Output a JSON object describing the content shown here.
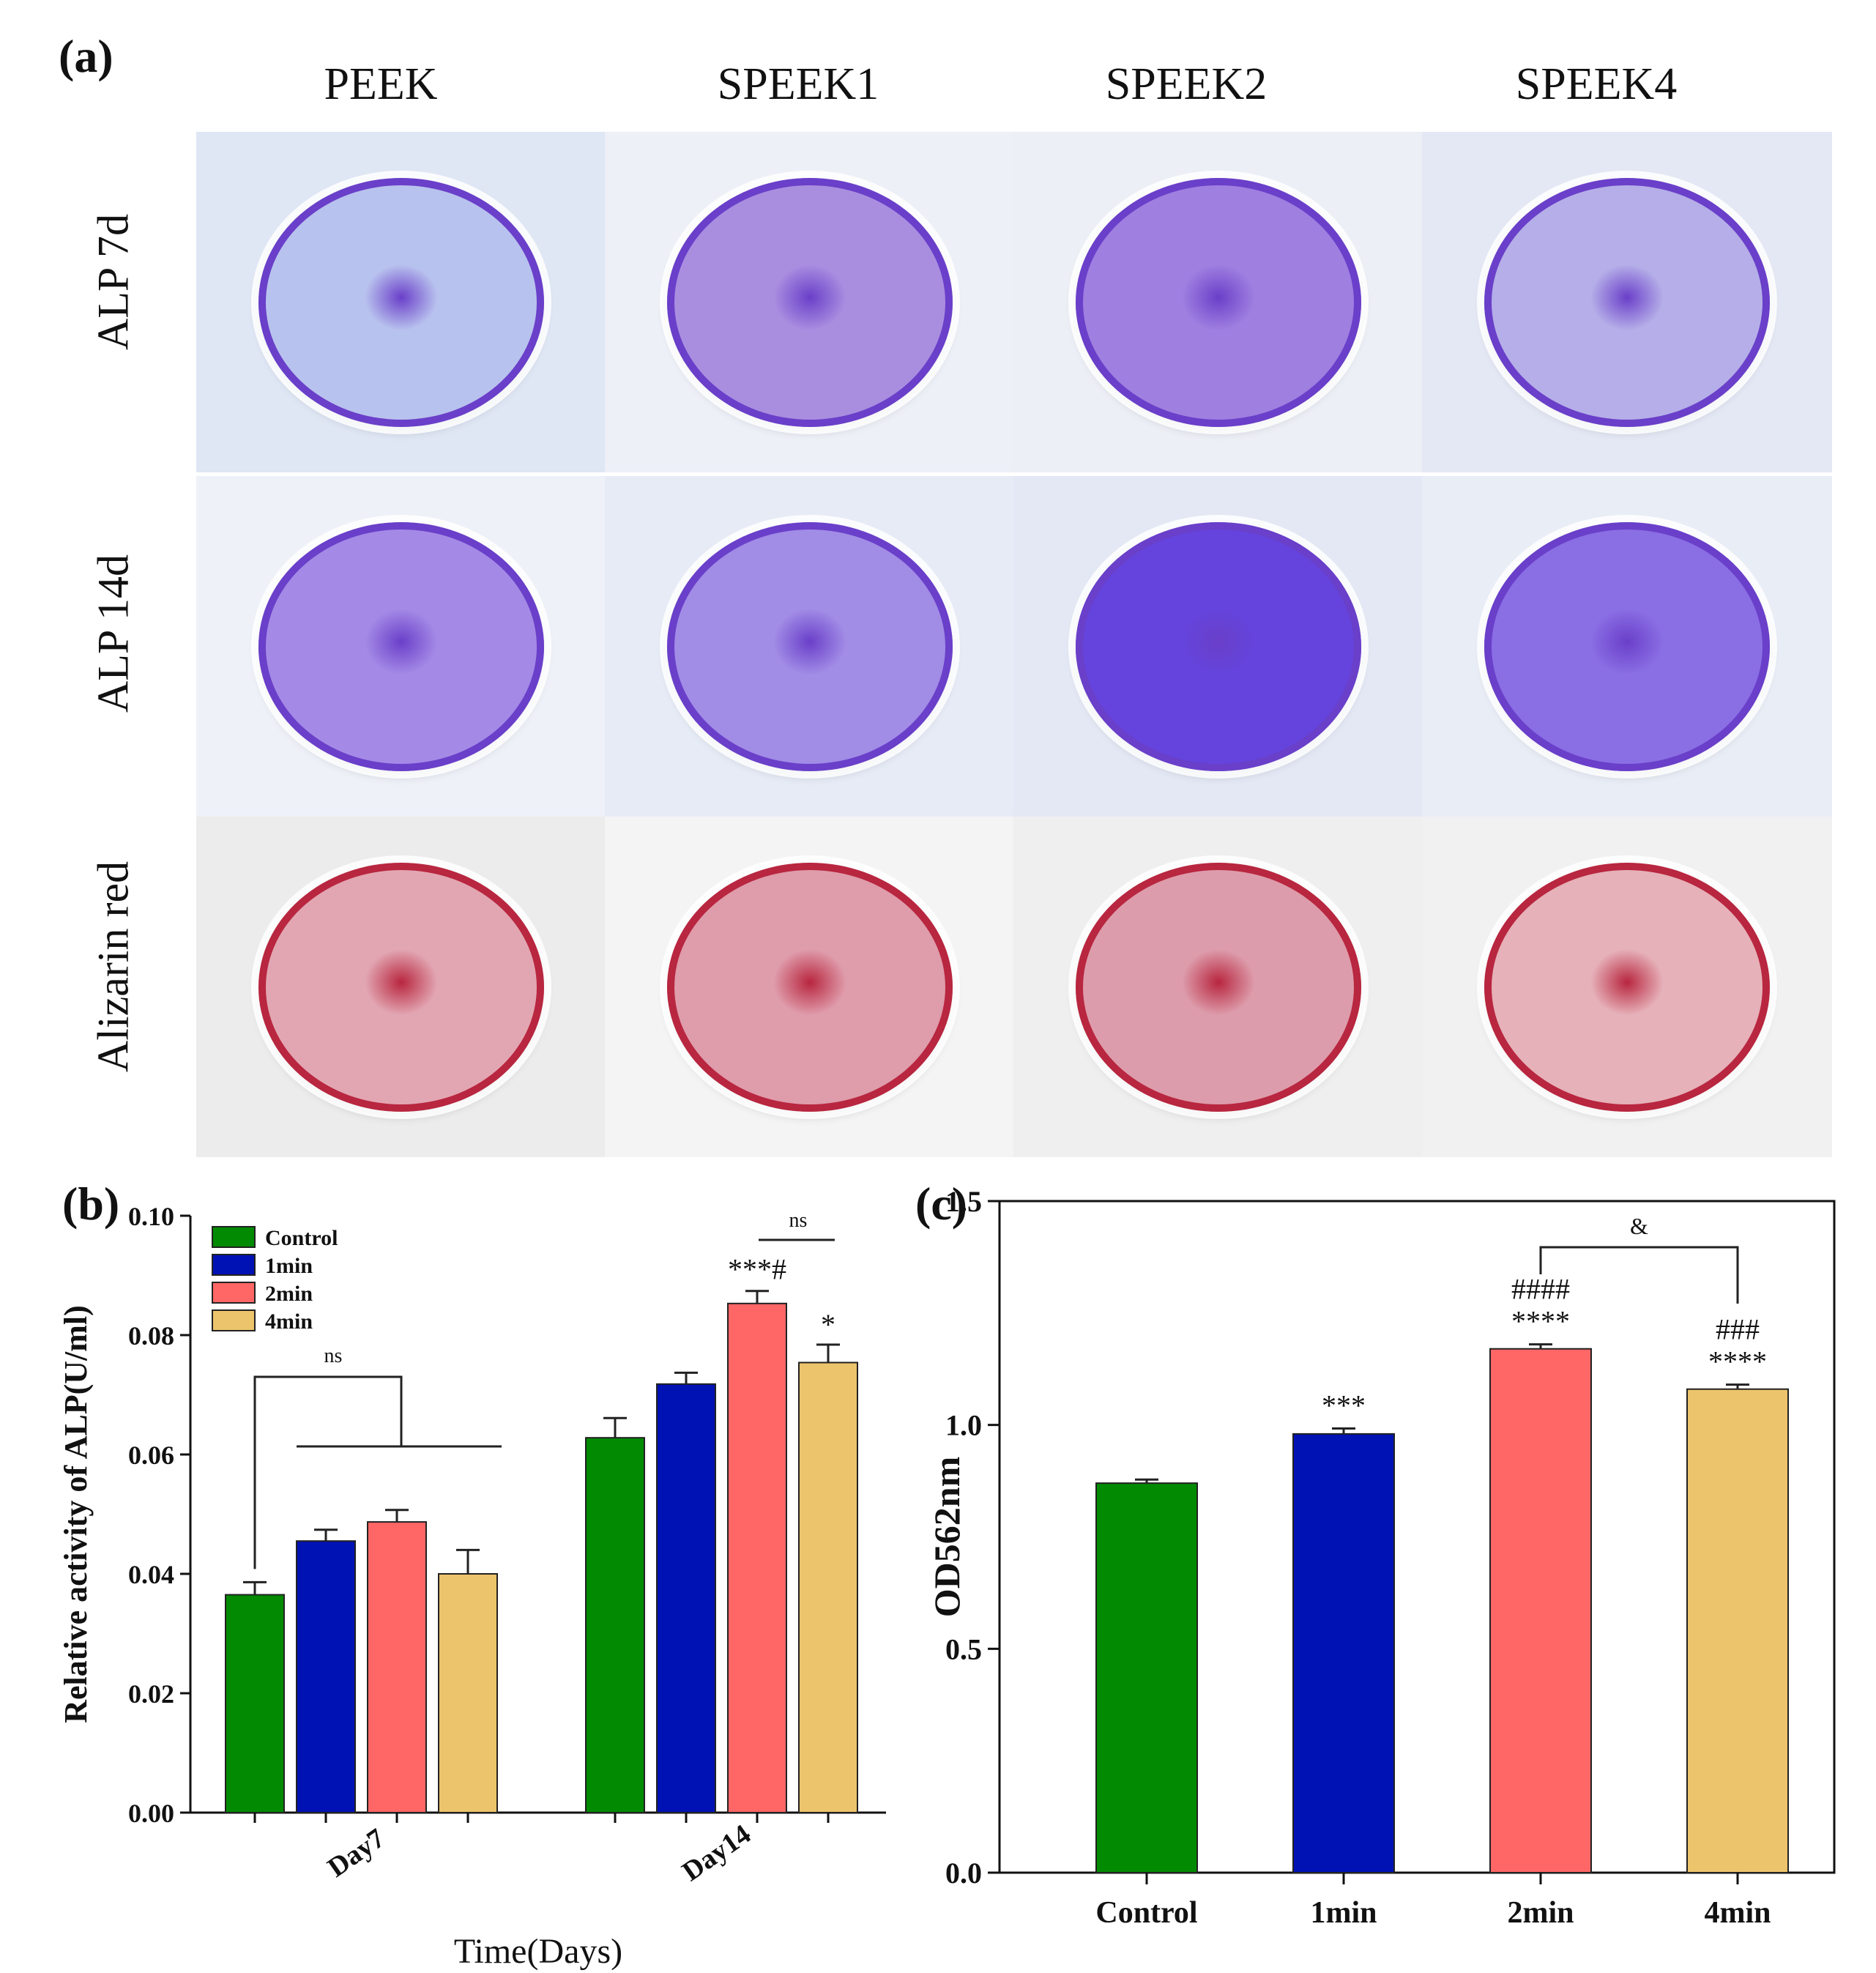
{
  "panel_a": {
    "label": "(a)",
    "columns": [
      "PEEK",
      "SPEEK1",
      "SPEEK2",
      "SPEEK4"
    ],
    "rows": [
      "ALP  7d",
      "ALP  14d",
      "Alizarin  red"
    ],
    "colors": {
      "alp7": [
        "#b8c2ee",
        "#a98ee0",
        "#9f7fe0",
        "#b5aee8"
      ],
      "alp14": [
        "#a48ae6",
        "#a18ce6",
        "#6444dc",
        "#8a6ee4"
      ],
      "alizarin": [
        "#e2a6b2",
        "#df9cab",
        "#dd9cab",
        "#e6b1b9"
      ]
    }
  },
  "chart_data": [
    {
      "panel": "(b)",
      "type": "bar",
      "xlabel": "Time(Days)",
      "ylabel": "Relative activity of ALP(U/ml)",
      "ylim": [
        0,
        0.1
      ],
      "yticks": [
        "0.00",
        "0.02",
        "0.04",
        "0.06",
        "0.08",
        "0.10"
      ],
      "categories": [
        "Day7",
        "Day14"
      ],
      "series": [
        {
          "name": "Control",
          "color": "#028b02",
          "values": [
            0.0365,
            0.0628
          ],
          "errors": [
            0.0021,
            0.0033
          ]
        },
        {
          "name": "1min",
          "color": "#0012b4",
          "values": [
            0.0455,
            0.0718
          ],
          "errors": [
            0.0019,
            0.0019
          ]
        },
        {
          "name": "2min",
          "color": "#ff6666",
          "values": [
            0.0487,
            0.0853
          ],
          "errors": [
            0.002,
            0.0021
          ]
        },
        {
          "name": "4min",
          "color": "#ecc46c",
          "values": [
            0.04,
            0.0754
          ],
          "errors": [
            0.004,
            0.003
          ]
        }
      ],
      "annotations": {
        "day7_bracket": "ns",
        "day14_bracket": "ns",
        "day14_2min": "***#",
        "day14_4min": "*"
      },
      "legend": "top-left"
    },
    {
      "panel": "(c)",
      "type": "bar",
      "xlabel": "",
      "ylabel": "OD562nm",
      "ylim": [
        0,
        1.5
      ],
      "yticks": [
        "0.0",
        "0.5",
        "1.0",
        "1.5"
      ],
      "categories": [
        "Control",
        "1min",
        "2min",
        "4min"
      ],
      "values": [
        0.87,
        0.98,
        1.17,
        1.08
      ],
      "errors": [
        0.008,
        0.012,
        0.01,
        0.01
      ],
      "colors": [
        "#028b02",
        "#0012b4",
        "#ff6666",
        "#ecc46c"
      ],
      "annotations": [
        "",
        "***",
        "####\n****",
        "###\n****"
      ],
      "bracket_label": "&"
    }
  ]
}
